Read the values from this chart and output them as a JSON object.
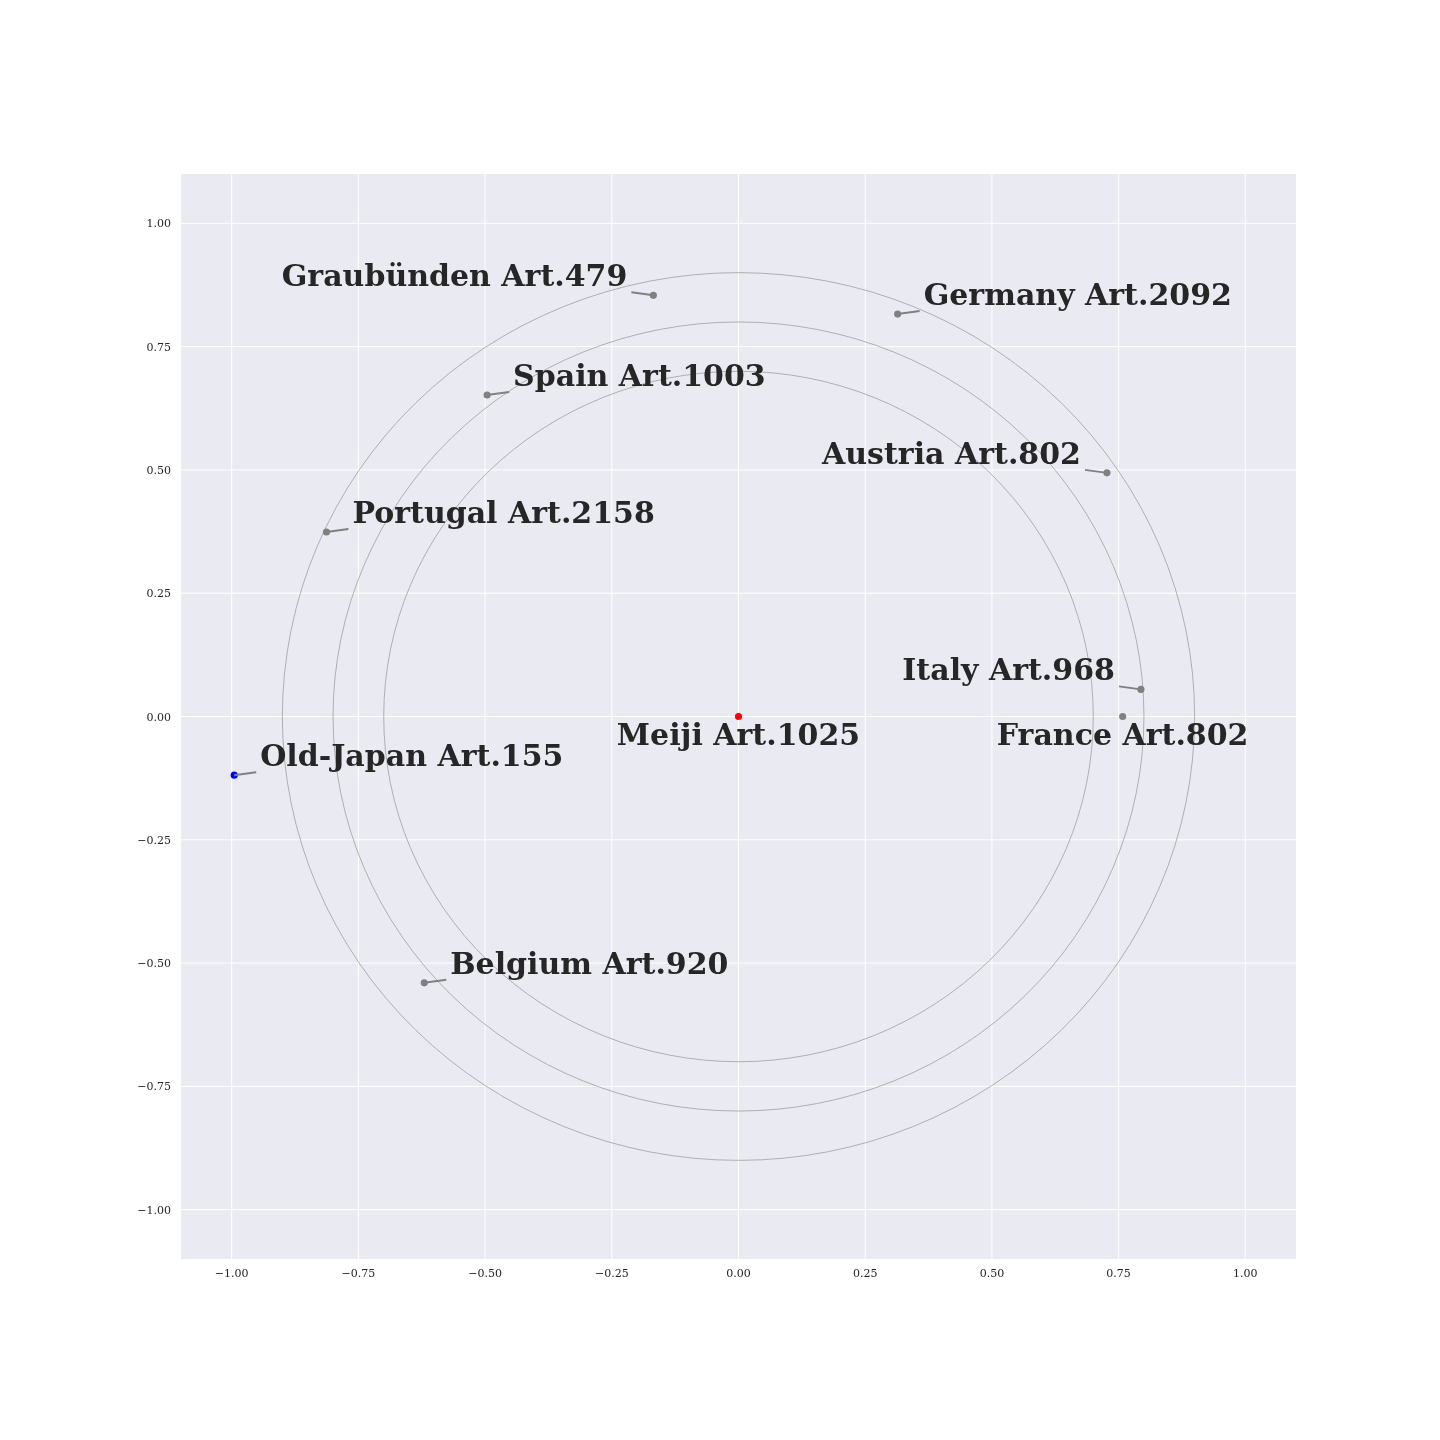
{
  "chart_data": {
    "type": "scatter",
    "xlim": [
      -1.1,
      1.1
    ],
    "ylim": [
      -1.1,
      1.1
    ],
    "xticks": [
      {
        "value": -1,
        "label": "−1.00"
      },
      {
        "value": -0.75,
        "label": "−0.75"
      },
      {
        "value": -0.5,
        "label": "−0.50"
      },
      {
        "value": -0.25,
        "label": "−0.25"
      },
      {
        "value": 0,
        "label": "0.00"
      },
      {
        "value": 0.25,
        "label": "0.25"
      },
      {
        "value": 0.5,
        "label": "0.50"
      },
      {
        "value": 0.75,
        "label": "0.75"
      },
      {
        "value": 1,
        "label": "1.00"
      }
    ],
    "yticks": [
      {
        "value": -1,
        "label": "−1.00"
      },
      {
        "value": -0.75,
        "label": "−0.75"
      },
      {
        "value": -0.5,
        "label": "−0.50"
      },
      {
        "value": -0.25,
        "label": "−0.25"
      },
      {
        "value": 0,
        "label": "0.00"
      },
      {
        "value": 0.25,
        "label": "0.25"
      },
      {
        "value": 0.5,
        "label": "0.50"
      },
      {
        "value": 0.75,
        "label": "0.75"
      },
      {
        "value": 1,
        "label": "1.00"
      }
    ],
    "grid": true,
    "marker": "circle",
    "series": [
      {
        "x": [
          -0.168,
          0.314,
          -0.496,
          0.727,
          -0.813,
          0.794,
          0.758,
          0,
          -0.995,
          -0.62
        ],
        "values": [
          0.854,
          0.816,
          0.652,
          0.494,
          0.374,
          0.055,
          0,
          0,
          -0.119,
          -0.54
        ],
        "colors": [
          "#808080",
          "#808080",
          "#808080",
          "#808080",
          "#808080",
          "#808080",
          "#808080",
          "#ff0000",
          "#0000ff",
          "#808080"
        ]
      }
    ],
    "annotations": [
      {
        "text": "Graubünden Art.479",
        "x": -0.168,
        "y": 0.854
      },
      {
        "text": "Germany Art.2092",
        "x": 0.314,
        "y": 0.816
      },
      {
        "text": "Spain Art.1003",
        "x": -0.496,
        "y": 0.652
      },
      {
        "text": "Austria Art.802",
        "x": 0.727,
        "y": 0.494
      },
      {
        "text": "Portugal Art.2158",
        "x": -0.813,
        "y": 0.374
      },
      {
        "text": "Italy Art.968",
        "x": 0.794,
        "y": 0.055
      },
      {
        "text": "France Art.802",
        "x": 0.758,
        "y": 0
      },
      {
        "text": "Meiji Art.1025",
        "x": 0,
        "y": 0
      },
      {
        "text": "Old-Japan Art.155",
        "x": -0.995,
        "y": -0.119
      },
      {
        "text": "Belgium Art.920",
        "x": -0.62,
        "y": -0.54
      }
    ]
  }
}
